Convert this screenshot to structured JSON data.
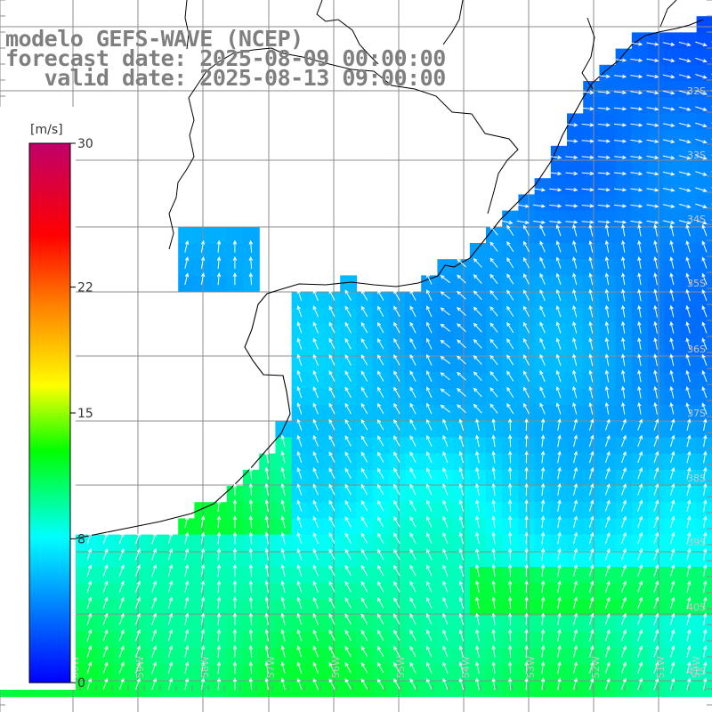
{
  "title": {
    "model": "modelo GEFS-WAVE (NCEP)",
    "forecast": "forecast date: 2025-08-09 00:00:00",
    "valid": "   valid date: 2025-08-13 09:00:00"
  },
  "colorbar": {
    "unit_label": "[m/s]",
    "ticks": [
      {
        "value": 30,
        "label": "30"
      },
      {
        "value": 22,
        "label": "22"
      },
      {
        "value": 15,
        "label": "15"
      },
      {
        "value": 8,
        "label": "8"
      },
      {
        "value": 0,
        "label": "0"
      }
    ],
    "colors": [
      "#0000ff",
      "#00a0ff",
      "#00ffff",
      "#00ff00",
      "#ffff00",
      "#ff8000",
      "#ff0000",
      "#c0006a"
    ]
  },
  "lat_labels": [
    "32S",
    "33S",
    "34S",
    "35S",
    "36S",
    "37S",
    "38S",
    "39S",
    "40S",
    "41S"
  ],
  "lon_labels": [
    "61W",
    "60W",
    "59W",
    "58W",
    "57W",
    "56W",
    "55W",
    "54W",
    "53W",
    "52W",
    "51W",
    "50W"
  ],
  "label_color": "#c8c8c8"
}
